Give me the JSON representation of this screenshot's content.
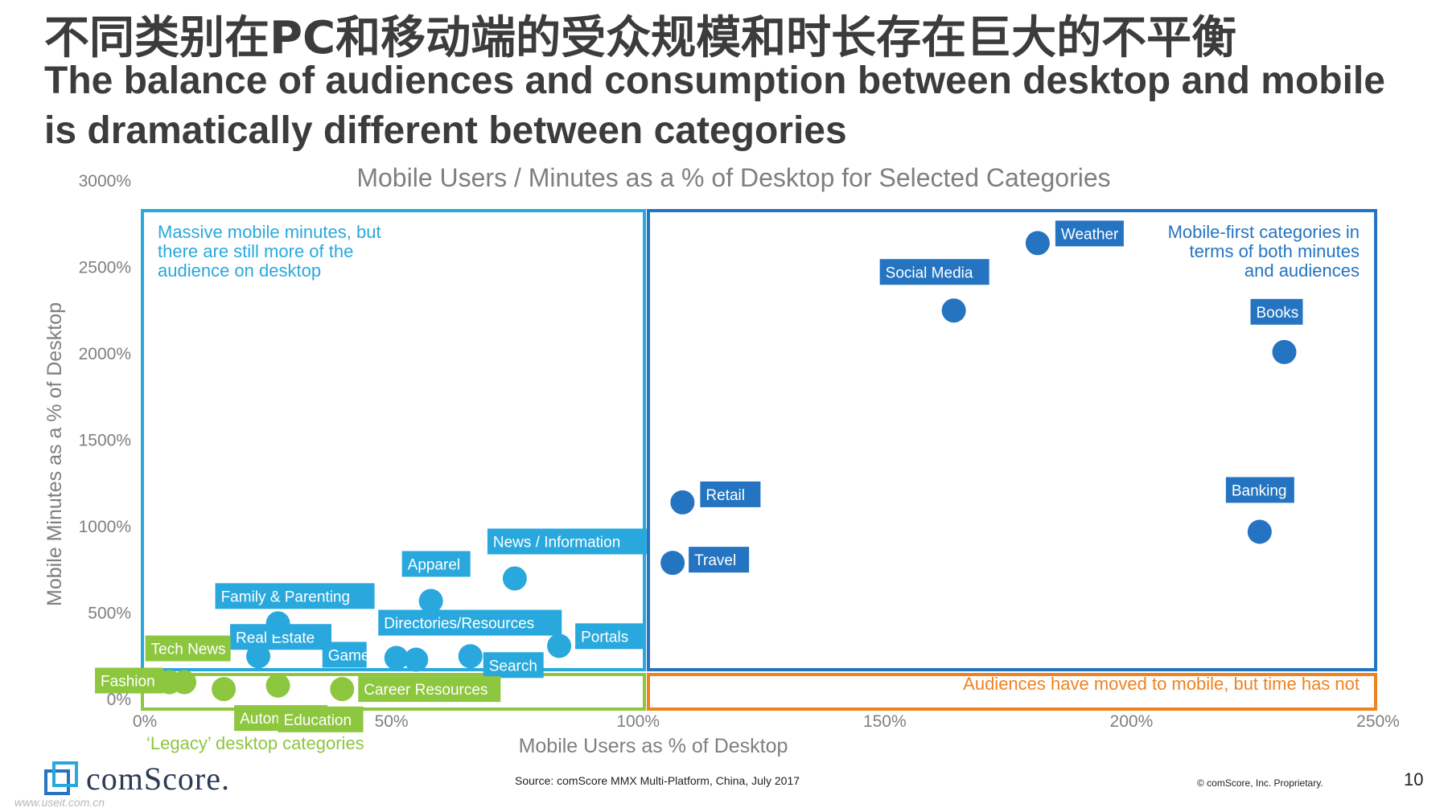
{
  "header": {
    "title_cn": "不同类别在PC和移动端的受众规模和时长存在巨大的不平衡",
    "title_en": "The balance of audiences and consumption between desktop and mobile is dramatically different between categories"
  },
  "colors": {
    "green": "#8dc63f",
    "light_blue": "#29a8dd",
    "dark_blue": "#2474c1",
    "orange": "#f0821e",
    "axis_text": "#7f7f7f"
  },
  "chart_data": {
    "type": "scatter",
    "title": "Mobile Users / Minutes as a % of Desktop for Selected Categories",
    "xlabel": "Mobile Users as % of Desktop",
    "ylabel": "Mobile Minutes as a % of Desktop",
    "xlim": [
      0,
      250
    ],
    "ylim": [
      0,
      3000
    ],
    "x_ticks": [
      "0%",
      "50%",
      "100%",
      "150%",
      "200%",
      "250%"
    ],
    "y_ticks": [
      "0%",
      "500%",
      "1000%",
      "1500%",
      "2000%",
      "2500%",
      "3000%"
    ],
    "grid": false,
    "regions": [
      {
        "name": "mobile-minutes-desktop-audience",
        "group": "light_blue",
        "x": [
          0,
          100
        ],
        "y": [
          200,
          2850
        ],
        "text": "Massive mobile minutes, but there are still more of the audience on desktop"
      },
      {
        "name": "mobile-first",
        "group": "dark_blue",
        "x": [
          100,
          250
        ],
        "y": [
          200,
          2850
        ],
        "text": "Mobile-first categories in terms of both minutes and audiences"
      },
      {
        "name": "legacy-desktop",
        "group": "green",
        "x": [
          0,
          100
        ],
        "y": [
          -50,
          200
        ],
        "text": "‘Legacy’ desktop categories"
      },
      {
        "name": "audiences-moved",
        "group": "orange",
        "x": [
          100,
          250
        ],
        "y": [
          -50,
          200
        ],
        "text": "Audiences have moved to mobile, but time has not"
      }
    ],
    "points": [
      {
        "label": "Weather",
        "x": 181,
        "y": 2640,
        "group": "dark_blue"
      },
      {
        "label": "Social Media",
        "x": 164,
        "y": 2250,
        "group": "dark_blue"
      },
      {
        "label": "Books",
        "x": 231,
        "y": 2010,
        "group": "dark_blue"
      },
      {
        "label": "Retail",
        "x": 109,
        "y": 1140,
        "group": "dark_blue"
      },
      {
        "label": "Banking",
        "x": 226,
        "y": 970,
        "group": "dark_blue"
      },
      {
        "label": "Travel",
        "x": 107,
        "y": 790,
        "group": "dark_blue"
      },
      {
        "label": "News / Information",
        "x": 75,
        "y": 700,
        "group": "light_blue"
      },
      {
        "label": "Apparel",
        "x": 58,
        "y": 570,
        "group": "light_blue"
      },
      {
        "label": "Family & Parenting",
        "x": 27,
        "y": 440,
        "group": "light_blue"
      },
      {
        "label": "Portals",
        "x": 84,
        "y": 310,
        "group": "light_blue"
      },
      {
        "label": "Real Estate",
        "x": 23,
        "y": 250,
        "group": "light_blue"
      },
      {
        "label": "Game",
        "x": 51,
        "y": 240,
        "group": "light_blue"
      },
      {
        "label": "Directories/Resources",
        "x": 55,
        "y": 230,
        "group": "light_blue"
      },
      {
        "label": "Search",
        "x": 66,
        "y": 250,
        "group": "light_blue"
      },
      {
        "label": "Tech News",
        "x": 5,
        "y": 100,
        "group": "green"
      },
      {
        "label": "Fashion",
        "x": 8,
        "y": 100,
        "group": "green"
      },
      {
        "label": "Automotive",
        "x": 16,
        "y": 60,
        "group": "green"
      },
      {
        "label": "Education",
        "x": 27,
        "y": 80,
        "group": "green"
      },
      {
        "label": "Career Resources",
        "x": 40,
        "y": 60,
        "group": "green"
      }
    ]
  },
  "footer": {
    "logo_text": "comScore.",
    "source": "Source: comScore MMX Multi-Platform, China, July 2017",
    "copyright": "© comScore, Inc. Proprietary.",
    "page_number": "10",
    "watermark": "www.useit.com.cn"
  }
}
